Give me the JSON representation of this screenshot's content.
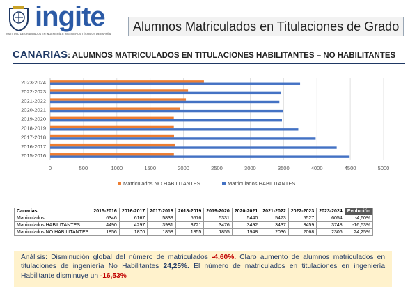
{
  "header": {
    "brand": "ingite",
    "brand_sub": "INSTITUTO DE GRADUADOS EN INGENIERÍA E INGENIEROS TÉCNICOS DE ESPAÑA",
    "title": "Alumnos Matriculados en Titulaciones de Grado"
  },
  "subhead": {
    "region": "CANARIAS",
    "rest": ": ALUMNOS MATRICULADOS EN TITULACIONES HABILITANTES – NO HABILITANTES"
  },
  "colors": {
    "habilitantes": "#4472c4",
    "no_habilitantes": "#ed7d31",
    "accent": "#1f3864"
  },
  "chart_data": {
    "type": "bar",
    "orientation": "horizontal",
    "categories": [
      "2023-2024",
      "2022-2023",
      "2021-2022",
      "2020-2021",
      "2019-2020",
      "2018-2019",
      "2017-2018",
      "2016-2017",
      "2015-2016"
    ],
    "series": [
      {
        "name": "Matriculados NO HABILITANTES",
        "values": [
          2306,
          2068,
          2036,
          1948,
          1855,
          1855,
          1858,
          1870,
          1856
        ]
      },
      {
        "name": "Matriculados HABILITANTES",
        "values": [
          3748,
          3459,
          3437,
          3492,
          3476,
          3721,
          3981,
          4297,
          4490
        ]
      }
    ],
    "xticks": [
      "0",
      "500",
      "1000",
      "1500",
      "2000",
      "2500",
      "3000",
      "3500",
      "4000",
      "4500",
      "5000"
    ],
    "xlim": [
      0,
      5000
    ],
    "grid": true,
    "legend": "bottom"
  },
  "table": {
    "headers": [
      "Canarias",
      "2015-2016",
      "2016-2017",
      "2017-2018",
      "2018-2019",
      "2019-2020",
      "2020-2021",
      "2021-2022",
      "2022-2023",
      "2023-2024",
      "Evolución"
    ],
    "rows": [
      [
        "Matriculados",
        "6346",
        "6167",
        "5839",
        "5576",
        "5331",
        "5440",
        "5473",
        "5527",
        "6054",
        "-4,60%"
      ],
      [
        "Matriculados HABILITANTES",
        "4490",
        "4297",
        "3981",
        "3721",
        "3476",
        "3492",
        "3437",
        "3459",
        "3748",
        "-16,53%"
      ],
      [
        "Matriculados NO HABILITANTES",
        "1856",
        "1870",
        "1858",
        "1855",
        "1855",
        "1948",
        "2036",
        "2068",
        "2306",
        "24,25%"
      ]
    ]
  },
  "analysis": {
    "label": "Análisis",
    "t1": ": Disminución global del número de matriculados ",
    "v1": "-4,60%.",
    "t2": " Claro aumento de alumnos matriculados en titulaciones de ingeniería No Habilitantes ",
    "v2": "24,25%.",
    "t3": " El número de matriculados en titulaciones en ingeniería Habilitante disminuye un ",
    "v3": "-16,53%"
  }
}
